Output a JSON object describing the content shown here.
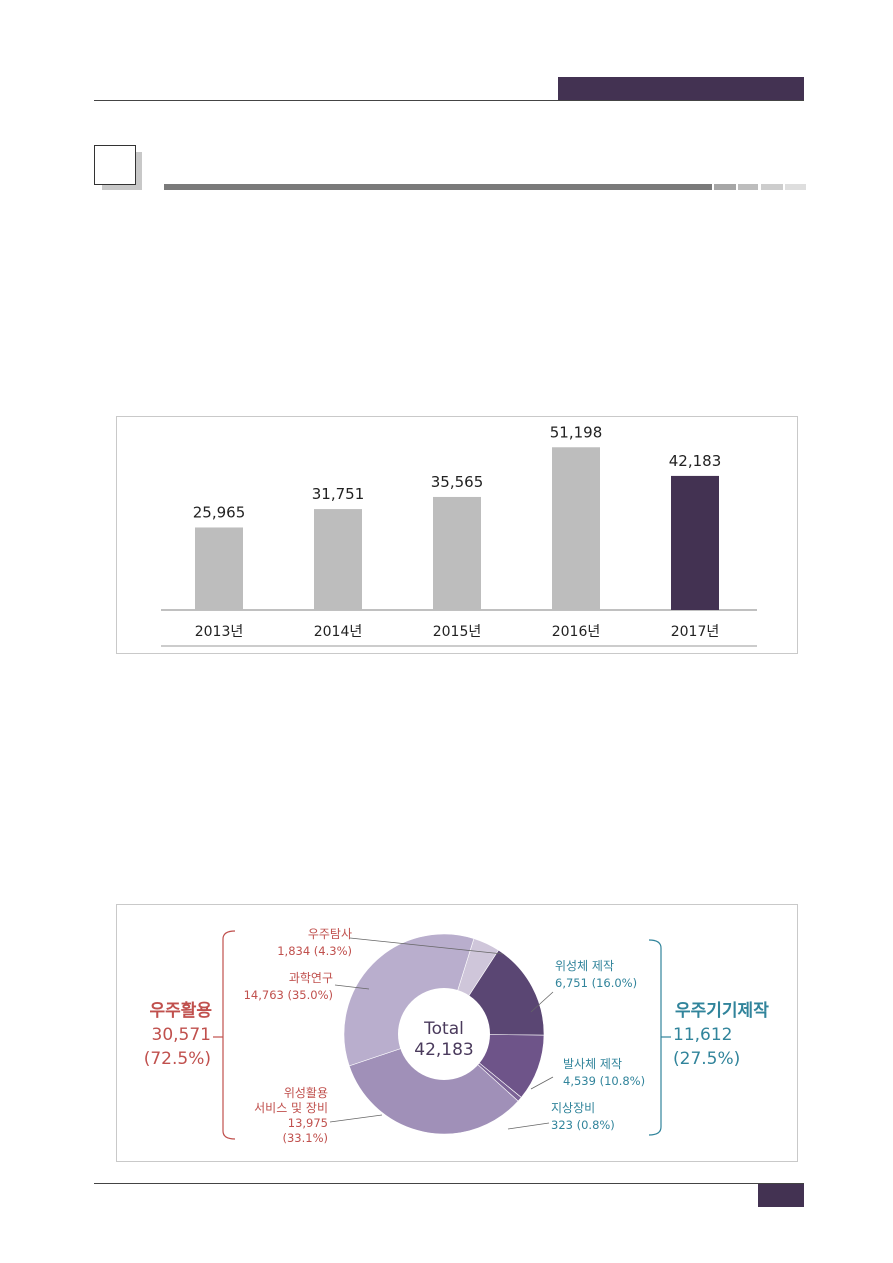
{
  "colors": {
    "accent": "#433252",
    "bar_default": "#bdbdbd",
    "bar_highlight": "#433252",
    "red_label": "#c0504d",
    "teal_label": "#31849b"
  },
  "chart_data": [
    {
      "type": "bar",
      "categories": [
        "2013년",
        "2014년",
        "2015년",
        "2016년",
        "2017년"
      ],
      "values": [
        25965,
        31751,
        35565,
        51198,
        42183
      ],
      "value_labels": [
        "25,965",
        "31,751",
        "35,565",
        "51,198",
        "42,183"
      ],
      "highlight_index": 4,
      "ylim": [
        0,
        56000
      ],
      "grid": false,
      "title": "",
      "xlabel": "",
      "ylabel": ""
    },
    {
      "type": "pie",
      "style": "donut",
      "center_label": "Total",
      "center_value": "42,183",
      "slices": [
        {
          "name": "우주탐사",
          "value": 1834,
          "pct": 4.3,
          "value_text": "1,834",
          "pct_text": "(4.3%)",
          "color": "#cfc6da",
          "group": "우주활용"
        },
        {
          "name": "위성체 제작",
          "value": 6751,
          "pct": 16.0,
          "value_text": "6,751",
          "pct_text": "(16.0%)",
          "color": "#5a4673",
          "group": "우주기기제작"
        },
        {
          "name": "발사체 제작",
          "value": 4539,
          "pct": 10.8,
          "value_text": "4,539",
          "pct_text": "(10.8%)",
          "color": "#6e5489",
          "group": "우주기기제작"
        },
        {
          "name": "지상장비",
          "value": 323,
          "pct": 0.8,
          "value_text": "323",
          "pct_text": "(0.8%)",
          "color": "#7b6396",
          "group": "우주기기제작"
        },
        {
          "name": "위성활용 서비스 및 장비",
          "value": 13975,
          "pct": 33.1,
          "value_text": "13,975",
          "pct_text": "(33.1%)",
          "color": "#a090b8",
          "group": "우주활용"
        },
        {
          "name": "과학연구",
          "value": 14763,
          "pct": 35.0,
          "value_text": "14,763",
          "pct_text": "(35.0%)",
          "color": "#b9aecd",
          "group": "우주활용"
        }
      ],
      "labels": {
        "space_exploration": {
          "name": "우주탐사",
          "value": "1,834  (4.3%)"
        },
        "science_research": {
          "name": "과학연구",
          "value": "14,763  (35.0%)"
        },
        "satellite_service": {
          "line1": "위성활용",
          "line2": "서비스 및 장비",
          "line3": "13,975",
          "line4": "(33.1%)"
        },
        "satellite_mfg": {
          "name": "위성체 제작",
          "value": "6,751  (16.0%)"
        },
        "launcher_mfg": {
          "name": "발사체 제작",
          "value": "4,539  (10.8%)"
        },
        "ground_equipment": {
          "name": "지상장비",
          "value": "323  (0.8%)"
        }
      },
      "groups": {
        "left": {
          "name": "우주활용",
          "value": "30,571",
          "pct": "(72.5%)"
        },
        "right": {
          "name": "우주기기제작",
          "value": "11,612",
          "pct": "(27.5%)"
        }
      }
    }
  ]
}
